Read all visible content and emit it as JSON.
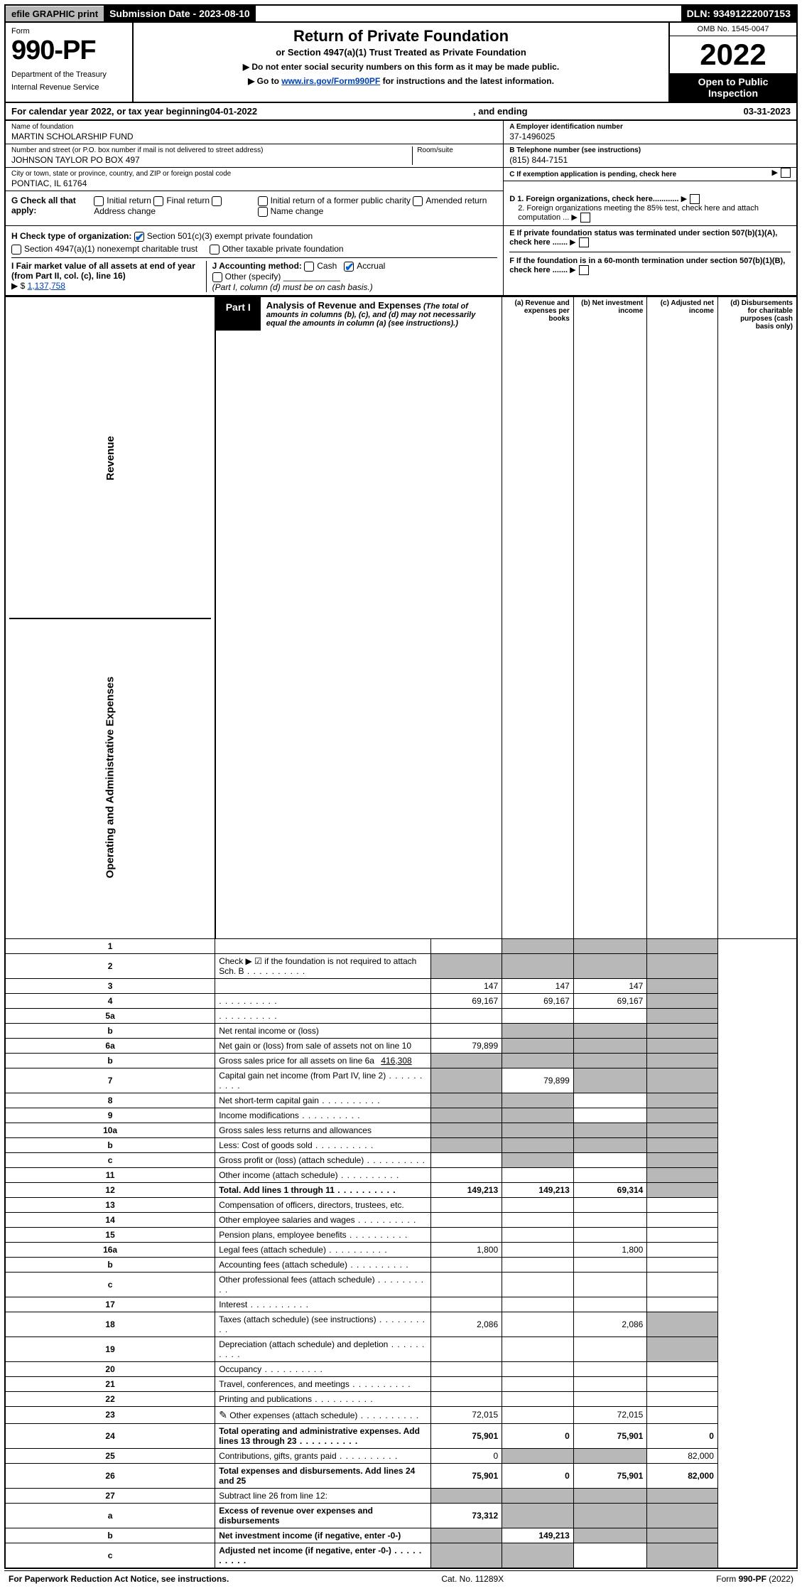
{
  "top_bar": {
    "efile": "efile GRAPHIC print",
    "submission": "Submission Date - 2023-08-10",
    "dln": "DLN: 93491222007153"
  },
  "header": {
    "form_label": "Form",
    "form_number": "990-PF",
    "dept": "Department of the Treasury",
    "irs": "Internal Revenue Service",
    "title": "Return of Private Foundation",
    "subtitle": "or Section 4947(a)(1) Trust Treated as Private Foundation",
    "instr1": "▶ Do not enter social security numbers on this form as it may be made public.",
    "instr2_pre": "▶ Go to ",
    "instr2_link": "www.irs.gov/Form990PF",
    "instr2_post": " for instructions and the latest information.",
    "omb": "OMB No. 1545-0047",
    "year": "2022",
    "open_public": "Open to Public Inspection"
  },
  "cal_year": {
    "prefix": "For calendar year 2022, or tax year beginning ",
    "begin": "04-01-2022",
    "mid": " , and ending ",
    "end": "03-31-2023"
  },
  "info": {
    "name_lbl": "Name of foundation",
    "name_val": "MARTIN SCHOLARSHIP FUND",
    "addr_lbl": "Number and street (or P.O. box number if mail is not delivered to street address)",
    "addr_val": "JOHNSON TAYLOR PO BOX 497",
    "room_lbl": "Room/suite",
    "city_lbl": "City or town, state or province, country, and ZIP or foreign postal code",
    "city_val": "PONTIAC, IL  61764",
    "a_lbl": "A Employer identification number",
    "a_val": "37-1496025",
    "b_lbl": "B Telephone number (see instructions)",
    "b_val": "(815) 844-7151",
    "c_lbl": "C If exemption application is pending, check here",
    "d1_lbl": "D 1. Foreign organizations, check here............",
    "d2_lbl": "2. Foreign organizations meeting the 85% test, check here and attach computation ...",
    "e_lbl": "E  If private foundation status was terminated under section 507(b)(1)(A), check here .......",
    "f_lbl": "F  If the foundation is in a 60-month termination under section 507(b)(1)(B), check here ......."
  },
  "g": {
    "label": "G Check all that apply:",
    "opts": [
      "Initial return",
      "Final return",
      "Address change",
      "Initial return of a former public charity",
      "Amended return",
      "Name change"
    ]
  },
  "h": {
    "label": "H Check type of organization:",
    "opt1": "Section 501(c)(3) exempt private foundation",
    "opt2": "Section 4947(a)(1) nonexempt charitable trust",
    "opt3": "Other taxable private foundation"
  },
  "i": {
    "label": "I Fair market value of all assets at end of year (from Part II, col. (c), line 16)",
    "arrow": "▶ $",
    "value": "1,137,758"
  },
  "j": {
    "label": "J Accounting method:",
    "cash": "Cash",
    "accrual": "Accrual",
    "other": "Other (specify)",
    "note": "(Part I, column (d) must be on cash basis.)"
  },
  "part1": {
    "tab": "Part I",
    "title": "Analysis of Revenue and Expenses",
    "subtitle": "(The total of amounts in columns (b), (c), and (d) may not necessarily equal the amounts in column (a) (see instructions).)",
    "col_a": "(a) Revenue and expenses per books",
    "col_b": "(b) Net investment income",
    "col_c": "(c) Adjusted net income",
    "col_d": "(d) Disbursements for charitable purposes (cash basis only)"
  },
  "side_labels": {
    "revenue": "Revenue",
    "expenses": "Operating and Administrative Expenses"
  },
  "rows": [
    {
      "n": "1",
      "d": "",
      "a": "",
      "b": "",
      "c": "",
      "sb": true,
      "sc": true,
      "sd": true
    },
    {
      "n": "2",
      "d": "Check ▶ ☑ if the foundation is not required to attach Sch. B",
      "ad": true,
      "sa": true,
      "sb": true,
      "sc": true,
      "sd": true
    },
    {
      "n": "3",
      "d": "",
      "a": "147",
      "b": "147",
      "c": "147",
      "sd": true
    },
    {
      "n": "4",
      "d": "",
      "ad": true,
      "a": "69,167",
      "b": "69,167",
      "c": "69,167",
      "sd": true
    },
    {
      "n": "5a",
      "d": "",
      "ad": true,
      "a": "",
      "b": "",
      "c": "",
      "sd": true
    },
    {
      "n": "b",
      "d": "Net rental income or (loss)",
      "sa": false,
      "sb": true,
      "sc": true,
      "sd": true
    },
    {
      "n": "6a",
      "d": "Net gain or (loss) from sale of assets not on line 10",
      "a": "79,899",
      "sb": true,
      "sc": true,
      "sd": true
    },
    {
      "n": "b",
      "d": "Gross sales price for all assets on line 6a",
      "inl": "416,308",
      "sa": true,
      "sb": true,
      "sc": true,
      "sd": true
    },
    {
      "n": "7",
      "d": "Capital gain net income (from Part IV, line 2)",
      "ad": true,
      "sa": true,
      "b": "79,899",
      "sc": true,
      "sd": true
    },
    {
      "n": "8",
      "d": "Net short-term capital gain",
      "ad": true,
      "sa": true,
      "sb": true,
      "sd": true
    },
    {
      "n": "9",
      "d": "Income modifications",
      "ad": true,
      "sa": true,
      "sb": true,
      "sd": true
    },
    {
      "n": "10a",
      "d": "Gross sales less returns and allowances",
      "sa": true,
      "sb": true,
      "sc": true,
      "sd": true
    },
    {
      "n": "b",
      "d": "Less: Cost of goods sold",
      "ad": true,
      "sa": true,
      "sb": true,
      "sc": true,
      "sd": true
    },
    {
      "n": "c",
      "d": "Gross profit or (loss) (attach schedule)",
      "ad": true,
      "sb": true,
      "sd": true
    },
    {
      "n": "11",
      "d": "Other income (attach schedule)",
      "ad": true,
      "sd": true
    },
    {
      "n": "12",
      "d": "Total. Add lines 1 through 11",
      "bold": true,
      "ad": true,
      "a": "149,213",
      "b": "149,213",
      "c": "69,314",
      "sd": true
    }
  ],
  "exp_rows": [
    {
      "n": "13",
      "d": "Compensation of officers, directors, trustees, etc."
    },
    {
      "n": "14",
      "d": "Other employee salaries and wages",
      "ad": true
    },
    {
      "n": "15",
      "d": "Pension plans, employee benefits",
      "ad": true
    },
    {
      "n": "16a",
      "d": "Legal fees (attach schedule)",
      "ad": true,
      "a": "1,800",
      "c": "1,800"
    },
    {
      "n": "b",
      "d": "Accounting fees (attach schedule)",
      "ad": true
    },
    {
      "n": "c",
      "d": "Other professional fees (attach schedule)",
      "ad": true
    },
    {
      "n": "17",
      "d": "Interest",
      "ad": true
    },
    {
      "n": "18",
      "d": "Taxes (attach schedule) (see instructions)",
      "ad": true,
      "a": "2,086",
      "c": "2,086",
      "sd": true
    },
    {
      "n": "19",
      "d": "Depreciation (attach schedule) and depletion",
      "ad": true,
      "sd": true
    },
    {
      "n": "20",
      "d": "Occupancy",
      "ad": true
    },
    {
      "n": "21",
      "d": "Travel, conferences, and meetings",
      "ad": true
    },
    {
      "n": "22",
      "d": "Printing and publications",
      "ad": true
    },
    {
      "n": "23",
      "d": "Other expenses (attach schedule)",
      "ad": true,
      "icon": true,
      "a": "72,015",
      "c": "72,015"
    },
    {
      "n": "24",
      "d": "Total operating and administrative expenses. Add lines 13 through 23",
      "bold": true,
      "ad": true,
      "a": "75,901",
      "b": "0",
      "c": "75,901",
      "dd": "0"
    },
    {
      "n": "25",
      "d": "Contributions, gifts, grants paid",
      "ad": true,
      "a": "0",
      "sb": true,
      "sc": true,
      "dd": "82,000"
    },
    {
      "n": "26",
      "d": "Total expenses and disbursements. Add lines 24 and 25",
      "bold": true,
      "a": "75,901",
      "b": "0",
      "c": "75,901",
      "dd": "82,000"
    }
  ],
  "final_rows": [
    {
      "n": "27",
      "d": "Subtract line 26 from line 12:",
      "sa": true,
      "sb": true,
      "sc": true,
      "sd": true
    },
    {
      "n": "a",
      "d": "Excess of revenue over expenses and disbursements",
      "bold": true,
      "a": "73,312",
      "sb": true,
      "sc": true,
      "sd": true
    },
    {
      "n": "b",
      "d": "Net investment income (if negative, enter -0-)",
      "bold": true,
      "sa": true,
      "b": "149,213",
      "sc": true,
      "sd": true
    },
    {
      "n": "c",
      "d": "Adjusted net income (if negative, enter -0-)",
      "bold": true,
      "ad": true,
      "sa": true,
      "sb": true,
      "sd": true
    }
  ],
  "footer": {
    "left": "For Paperwork Reduction Act Notice, see instructions.",
    "mid": "Cat. No. 11289X",
    "right": "Form 990-PF (2022)"
  },
  "colors": {
    "shade": "#b8b8b8",
    "link": "#0040b0",
    "check": "#0060d0"
  }
}
